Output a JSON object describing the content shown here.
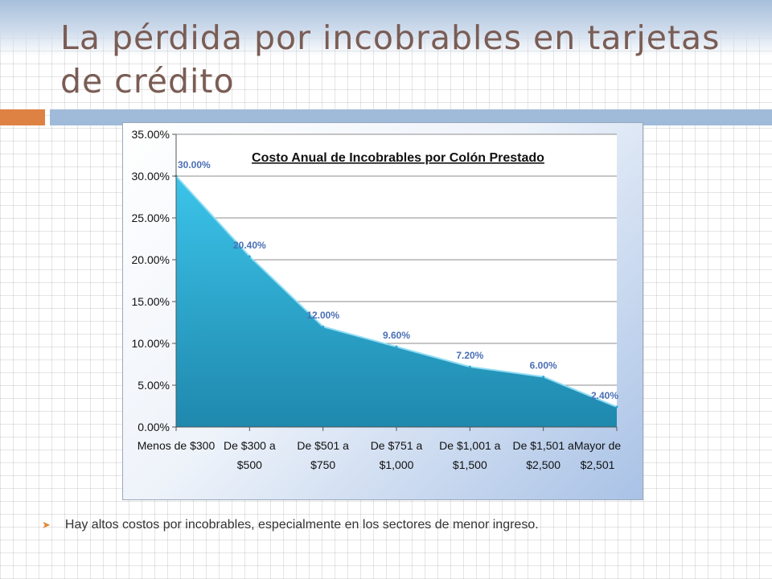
{
  "slide": {
    "title": "La pérdida por incobrables en tarjetas de crédito",
    "bullet_icon": "arrowhead-icon",
    "bullet_text": "Hay altos costos por incobrables, especialmente en los sectores de menor ingreso."
  },
  "colors": {
    "title": "#7a5d55",
    "accent_orange": "#de8244",
    "accent_blue": "#9fbbd9",
    "area_top": "#3cc4ea",
    "area_bottom": "#1f88ad",
    "data_label": "#4a6fb5"
  },
  "chart_data": {
    "type": "area",
    "title": "Costo Anual de Incobrables por Colón Prestado",
    "categories": [
      [
        "Menos de $300"
      ],
      [
        "De $300 a",
        "$500"
      ],
      [
        "De $501 a",
        "$750"
      ],
      [
        "De $751 a",
        "$1,000"
      ],
      [
        "De $1,001 a",
        "$1,500"
      ],
      [
        "De $1,501 a",
        "$2,500"
      ],
      [
        "Mayor de",
        "$2,501"
      ]
    ],
    "values": [
      30.0,
      20.4,
      12.0,
      9.6,
      7.2,
      6.0,
      2.4
    ],
    "data_labels": [
      "30.00%",
      "20.40%",
      "12.00%",
      "9.60%",
      "7.20%",
      "6.00%",
      "2.40%"
    ],
    "y_ticks": [
      "0.00%",
      "5.00%",
      "10.00%",
      "15.00%",
      "20.00%",
      "25.00%",
      "30.00%",
      "35.00%"
    ],
    "ylim": [
      0,
      35
    ],
    "xlabel": "",
    "ylabel": "",
    "grid": true,
    "legend": "none"
  }
}
